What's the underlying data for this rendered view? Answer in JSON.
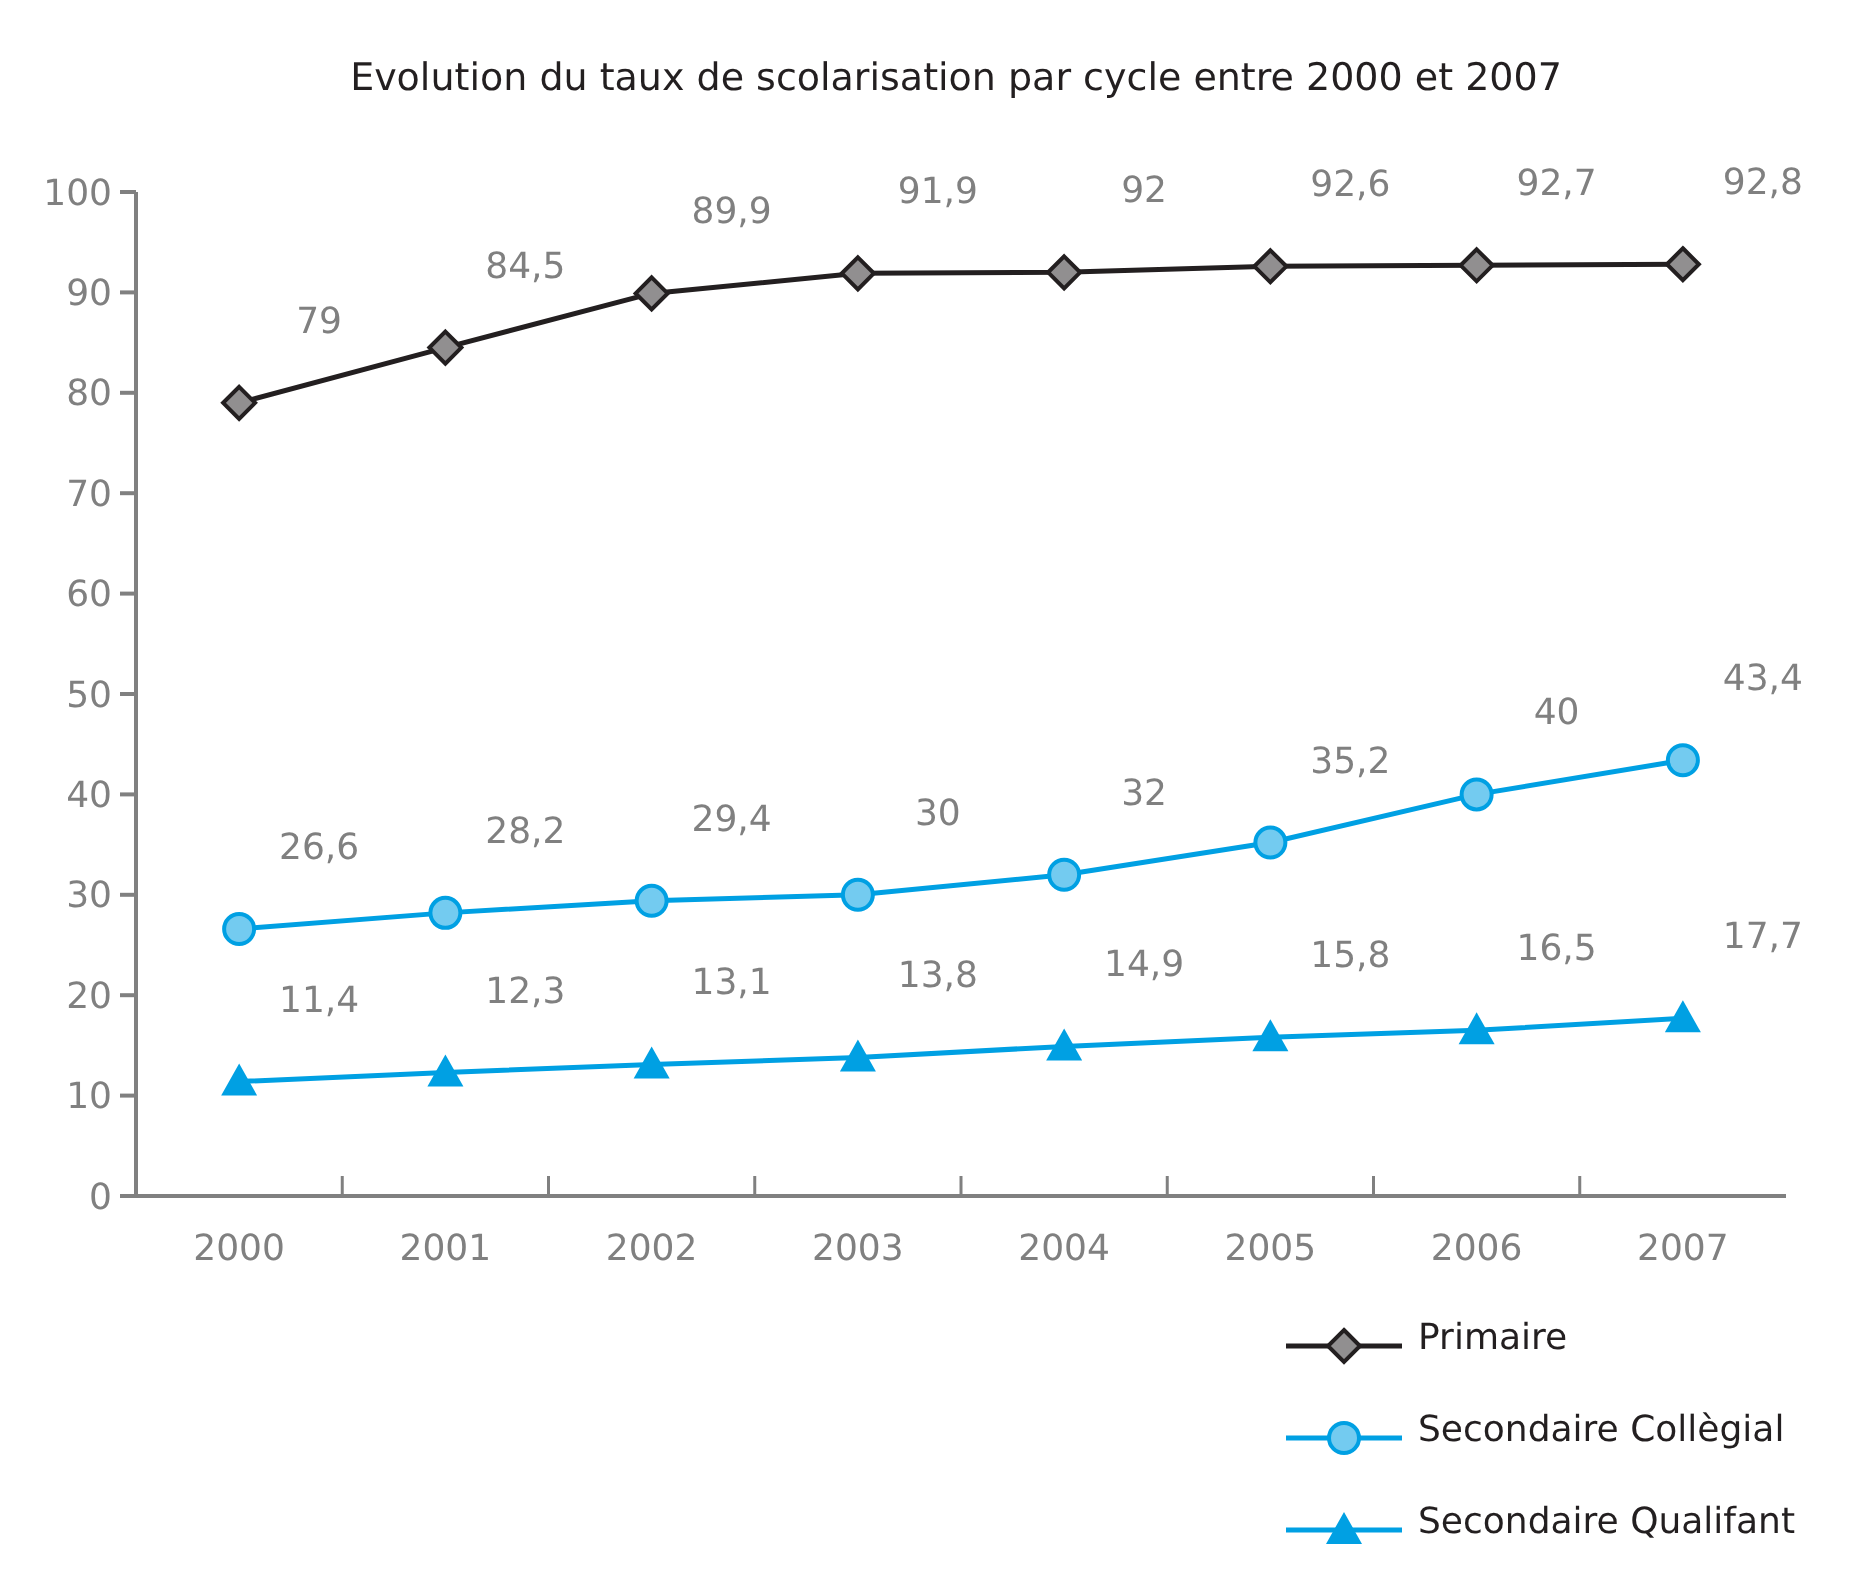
{
  "chart_data": {
    "type": "line",
    "title": "Evolution du taux de scolarisation par cycle entre 2000 et 2007",
    "categories": [
      "2000",
      "2001",
      "2002",
      "2003",
      "2004",
      "2005",
      "2006",
      "2007"
    ],
    "ylim": [
      0,
      100
    ],
    "yticks": [
      0,
      10,
      20,
      30,
      40,
      50,
      60,
      70,
      80,
      90,
      100
    ],
    "grid": false,
    "legend": "bottom right",
    "line_style": "solid",
    "series": [
      {
        "name": "Primaire",
        "color": "#231f20",
        "marker": "diamond",
        "values": [
          79,
          84.5,
          89.9,
          91.9,
          92,
          92.6,
          92.7,
          92.8
        ],
        "value_labels": [
          "79",
          "84,5",
          "89,9",
          "91,9",
          "92",
          "92,6",
          "92,7",
          "92,8"
        ]
      },
      {
        "name": "Secondaire Collègial",
        "color": "#00a0e3",
        "marker": "circle",
        "values": [
          26.6,
          28.2,
          29.4,
          30,
          32,
          35.2,
          40,
          43.4
        ],
        "value_labels": [
          "26,6",
          "28,2",
          "29,4",
          "30",
          "32",
          "35,2",
          "40",
          "43,4"
        ]
      },
      {
        "name": "Secondaire Qualifant",
        "color": "#00a0e3",
        "marker": "triangle",
        "values": [
          11.4,
          12.3,
          13.1,
          13.8,
          14.9,
          15.8,
          16.5,
          17.7
        ],
        "value_labels": [
          "11,4",
          "12,3",
          "13,1",
          "13,8",
          "14,9",
          "15,8",
          "16,5",
          "17,7"
        ]
      }
    ]
  }
}
